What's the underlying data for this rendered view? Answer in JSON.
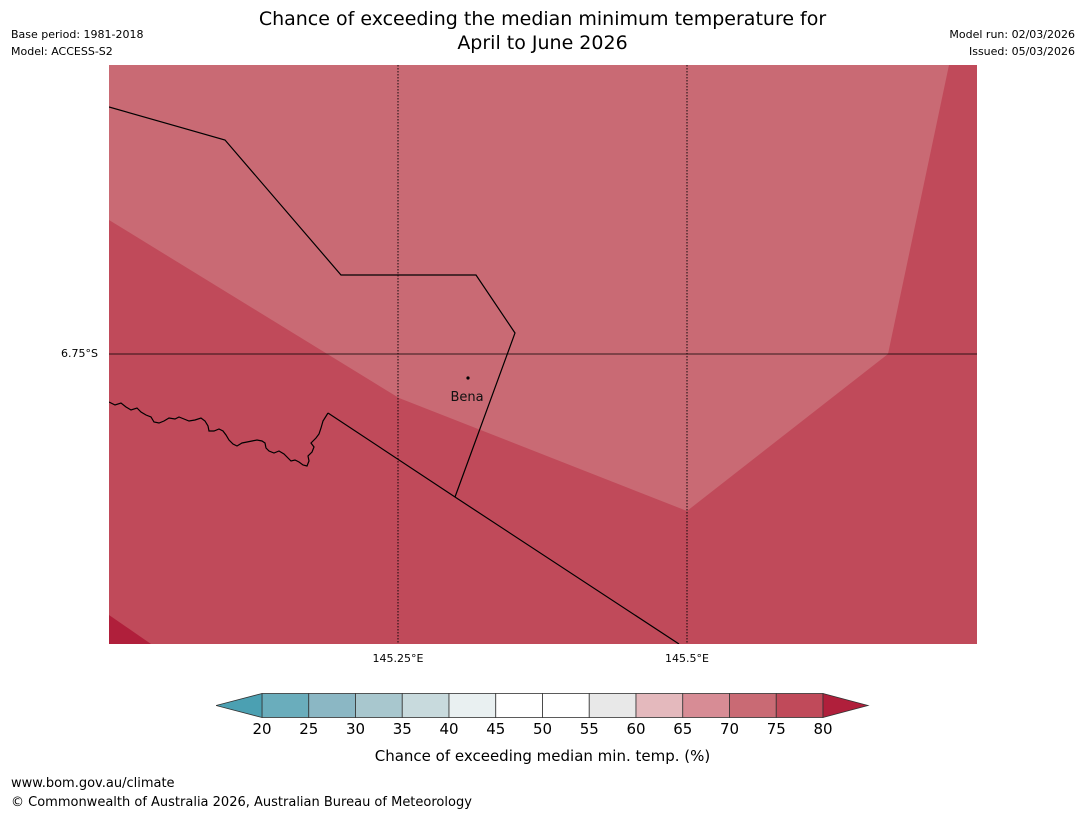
{
  "header": {
    "title_line1": "Chance of exceeding the median minimum temperature for",
    "title_line2": "April to June 2026",
    "base_period": "Base period: 1981-2018",
    "model": "Model: ACCESS-S2",
    "model_run": "Model run: 02/03/2026",
    "issued": "Issued: 05/03/2026"
  },
  "map": {
    "location_label": "Bena",
    "lat_tick": "6.75°S",
    "lon_ticks": [
      "145.25°E",
      "145.5°E"
    ],
    "colors": {
      "band_70_75": "#c96a74",
      "band_75_80": "#c04a5a",
      "band_above_80": "#b01f3b"
    }
  },
  "colorbar": {
    "label": "Chance of exceeding median min. temp. (%)",
    "ticks": [
      "20",
      "25",
      "30",
      "35",
      "40",
      "45",
      "50",
      "55",
      "60",
      "65",
      "70",
      "75",
      "80"
    ],
    "colors": [
      "#6aadbc",
      "#8bb7c4",
      "#a8c7ce",
      "#c8dadd",
      "#e9f0f1",
      "#ffffff",
      "#ffffff",
      "#e8e8e8",
      "#e4b9bd",
      "#d78c95",
      "#c96a74",
      "#c04a5a"
    ],
    "under_color": "#4ba0b2",
    "over_color": "#b01f3b"
  },
  "footer": {
    "url": "www.bom.gov.au/climate",
    "copyright": "© Commonwealth of Australia 2026, Australian Bureau of Meteorology"
  }
}
